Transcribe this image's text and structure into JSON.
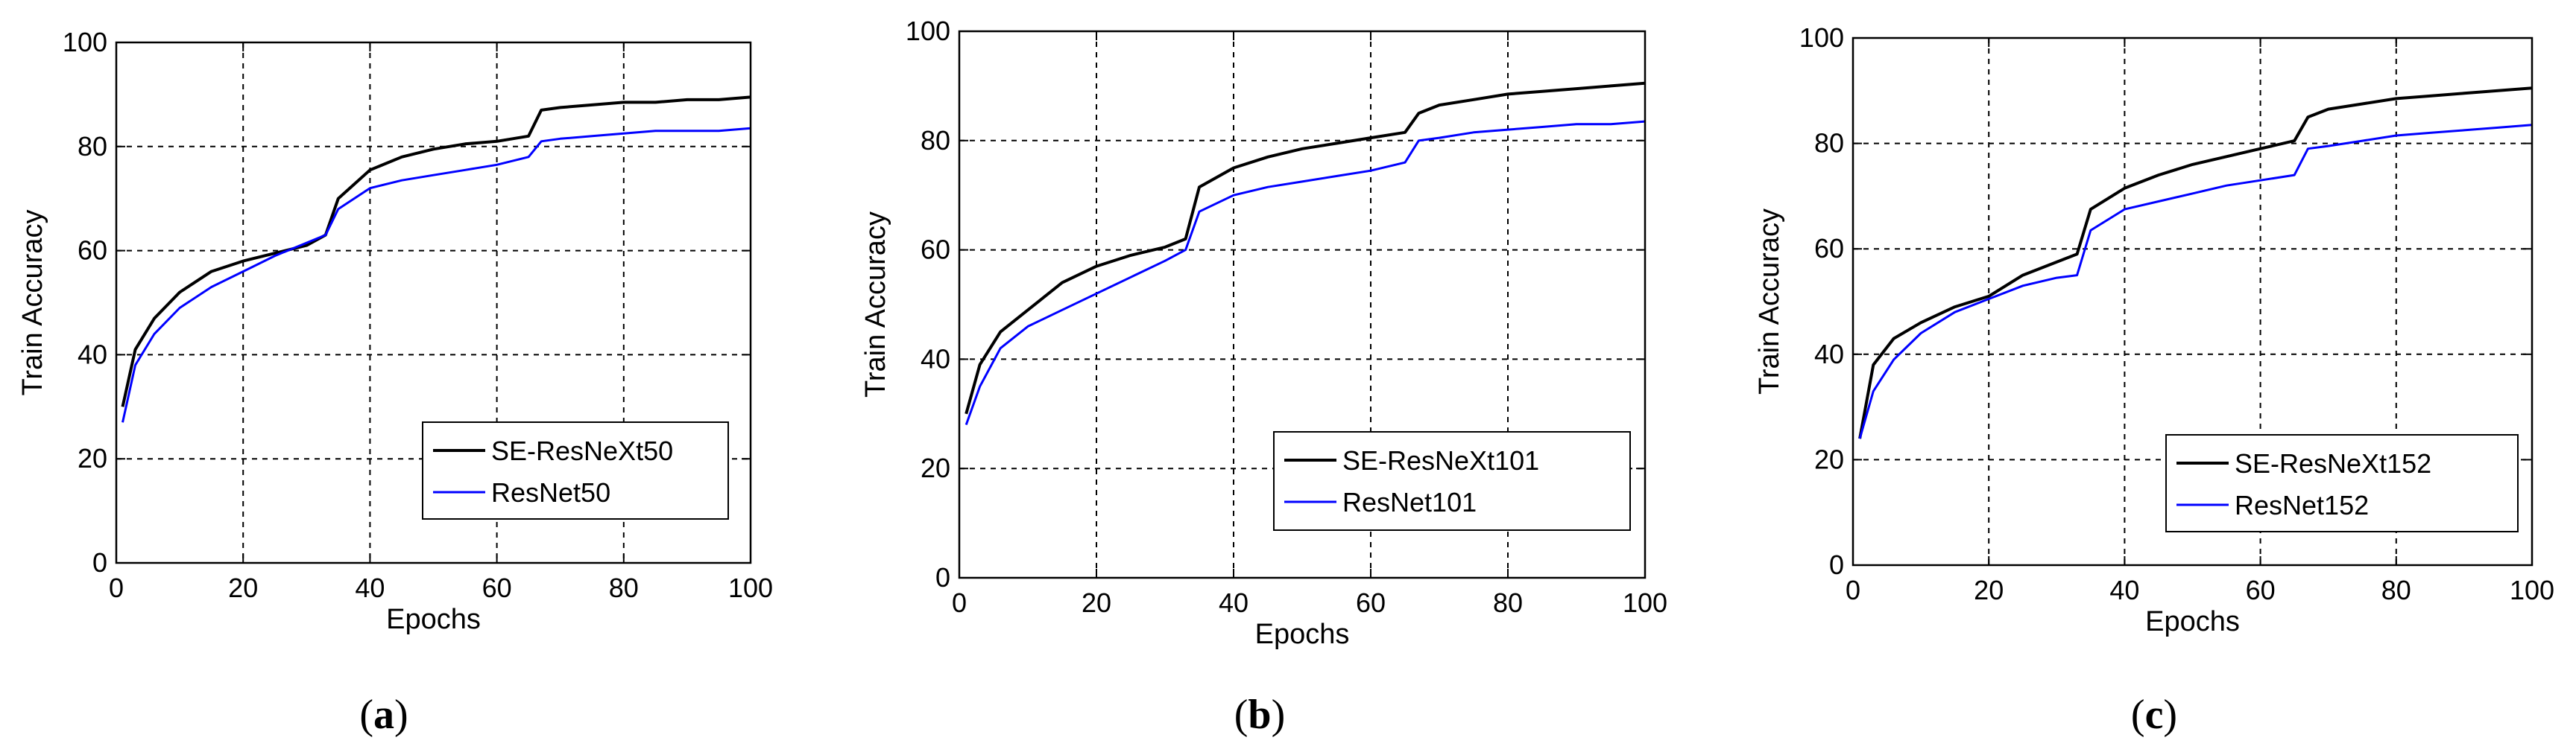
{
  "colors": {
    "series_1": "#000000",
    "series_2": "#0000ff",
    "grid": "#000000",
    "axis": "#000000"
  },
  "chart_data": [
    {
      "type": "line",
      "panel_label": "(a)",
      "xlabel": "Epochs",
      "ylabel": "Train Accuracy",
      "xlim": [
        0,
        100
      ],
      "ylim": [
        0,
        100
      ],
      "xticks": [
        0,
        20,
        40,
        60,
        80,
        100
      ],
      "yticks": [
        0,
        20,
        40,
        60,
        80,
        100
      ],
      "grid": true,
      "legend_position": "bottom-right",
      "x": [
        1,
        3,
        6,
        10,
        15,
        20,
        25,
        30,
        33,
        35,
        40,
        45,
        50,
        55,
        60,
        65,
        67,
        70,
        75,
        80,
        85,
        90,
        95,
        100
      ],
      "series": [
        {
          "name": "SE-ResNeXt50",
          "color": "#000000",
          "values": [
            30,
            41,
            47,
            52,
            56,
            58,
            59.5,
            61,
            63,
            70,
            75.5,
            78,
            79.5,
            80.5,
            81,
            82,
            87,
            87.5,
            88,
            88.5,
            88.5,
            89,
            89,
            89.5
          ]
        },
        {
          "name": "ResNet50",
          "color": "#0000ff",
          "values": [
            27,
            38,
            44,
            49,
            53,
            56,
            59,
            61.5,
            63,
            68,
            72,
            73.5,
            74.5,
            75.5,
            76.5,
            78,
            81,
            81.5,
            82,
            82.5,
            83,
            83,
            83,
            83.5
          ]
        }
      ]
    },
    {
      "type": "line",
      "panel_label": "(b)",
      "xlabel": "Epochs",
      "ylabel": "Train Accuracy",
      "xlim": [
        0,
        100
      ],
      "ylim": [
        0,
        100
      ],
      "xticks": [
        0,
        20,
        40,
        60,
        80,
        100
      ],
      "yticks": [
        0,
        20,
        40,
        60,
        80,
        100
      ],
      "grid": true,
      "legend_position": "bottom-right",
      "x": [
        1,
        3,
        6,
        10,
        15,
        20,
        25,
        30,
        33,
        35,
        40,
        45,
        50,
        55,
        60,
        65,
        67,
        70,
        75,
        80,
        85,
        90,
        95,
        100
      ],
      "series": [
        {
          "name": "SE-ResNeXt101",
          "color": "#000000",
          "values": [
            30,
            39,
            45,
            49,
            54,
            57,
            59,
            60.5,
            62,
            71.5,
            75,
            77,
            78.5,
            79.5,
            80.5,
            81.5,
            85,
            86.5,
            87.5,
            88.5,
            89,
            89.5,
            90,
            90.5
          ]
        },
        {
          "name": "ResNet101",
          "color": "#0000ff",
          "values": [
            28,
            35,
            42,
            46,
            49,
            52,
            55,
            58,
            60,
            67,
            70,
            71.5,
            72.5,
            73.5,
            74.5,
            76,
            80,
            80.5,
            81.5,
            82,
            82.5,
            83,
            83,
            83.5
          ]
        }
      ]
    },
    {
      "type": "line",
      "panel_label": "(c)",
      "xlabel": "Epochs",
      "ylabel": "Train Accuracy",
      "xlim": [
        0,
        100
      ],
      "ylim": [
        0,
        100
      ],
      "xticks": [
        0,
        20,
        40,
        60,
        80,
        100
      ],
      "yticks": [
        0,
        20,
        40,
        60,
        80,
        100
      ],
      "grid": true,
      "legend_position": "bottom-right",
      "x": [
        1,
        3,
        6,
        10,
        15,
        20,
        25,
        30,
        33,
        35,
        40,
        45,
        50,
        55,
        60,
        65,
        67,
        70,
        75,
        80,
        85,
        90,
        95,
        100
      ],
      "series": [
        {
          "name": "SE-ResNeXt152",
          "color": "#000000",
          "values": [
            24,
            38,
            43,
            46,
            49,
            51,
            55,
            57.5,
            59,
            67.5,
            71.5,
            74,
            76,
            77.5,
            79,
            80.5,
            85,
            86.5,
            87.5,
            88.5,
            89,
            89.5,
            90,
            90.5
          ]
        },
        {
          "name": "ResNet152",
          "color": "#0000ff",
          "values": [
            24,
            33,
            39,
            44,
            48,
            50.5,
            53,
            54.5,
            55,
            63.5,
            67.5,
            69,
            70.5,
            72,
            73,
            74,
            79,
            79.5,
            80.5,
            81.5,
            82,
            82.5,
            83,
            83.5
          ]
        }
      ]
    }
  ]
}
